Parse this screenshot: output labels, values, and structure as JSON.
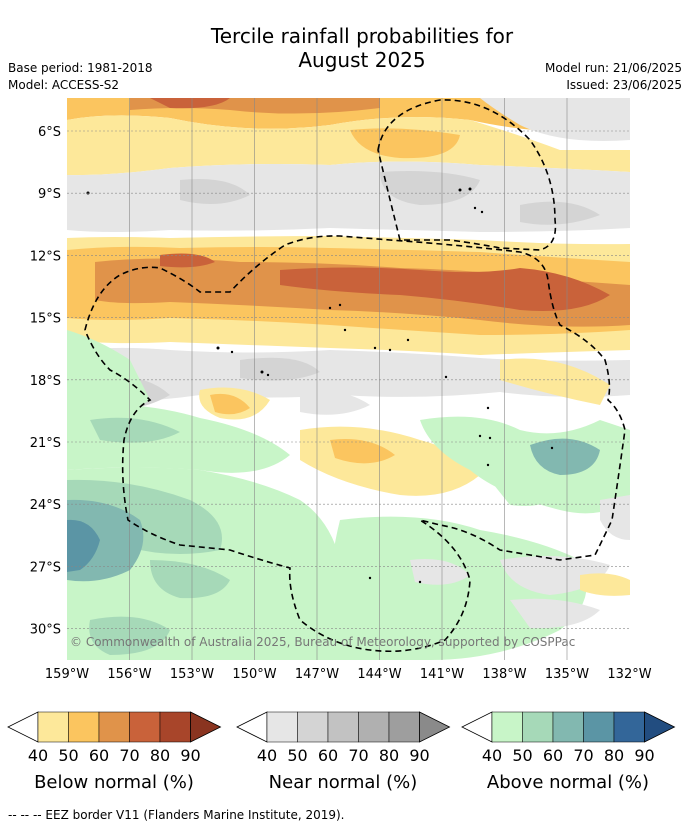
{
  "title_line1": "Tercile rainfall probabilities for",
  "title_line2": "August 2025",
  "meta_left": [
    "Base period: 1981-2018",
    "Model: ACCESS-S2"
  ],
  "meta_right": [
    "Model run: 21/06/2025",
    "Issued: 23/06/2025"
  ],
  "lat_ticks": [
    "6°S",
    "9°S",
    "12°S",
    "15°S",
    "18°S",
    "21°S",
    "24°S",
    "27°S",
    "30°S"
  ],
  "lon_ticks": [
    "159°W",
    "156°W",
    "153°W",
    "150°W",
    "147°W",
    "144°W",
    "141°W",
    "138°W",
    "135°W",
    "132°W"
  ],
  "copyright": "© Commonwealth of Australia 2025, Bureau of Meteorology, supported by COSPPac",
  "legends": [
    {
      "title": "Below normal (%)",
      "labels": [
        "40",
        "50",
        "60",
        "70",
        "80",
        "90"
      ],
      "colors": [
        "#fde89a",
        "#fbc55f",
        "#e0934a",
        "#c9623a",
        "#a8452a",
        "#8a3420"
      ]
    },
    {
      "title": "Near normal (%)",
      "labels": [
        "40",
        "50",
        "60",
        "70",
        "80",
        "90"
      ],
      "colors": [
        "#e6e6e6",
        "#d4d4d4",
        "#c2c2c2",
        "#b0b0b0",
        "#9e9e9e",
        "#8a8a8a"
      ]
    },
    {
      "title": "Above normal (%)",
      "labels": [
        "40",
        "50",
        "60",
        "70",
        "80",
        "90"
      ],
      "colors": [
        "#c8f5c8",
        "#a6d9b8",
        "#82b8b0",
        "#5b95a5",
        "#336699",
        "#224d80"
      ]
    }
  ],
  "footnote": "--  --  -- EEZ border V11 (Flanders Marine Institute, 2019)."
}
